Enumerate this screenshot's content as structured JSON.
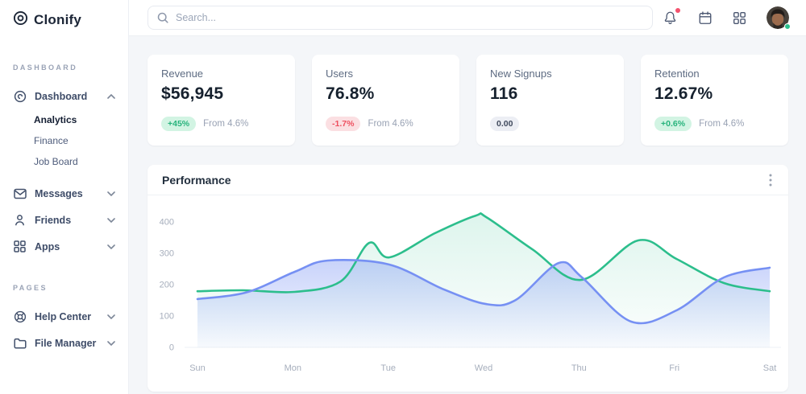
{
  "brand": {
    "name": "Clonify"
  },
  "topbar": {
    "search_placeholder": "Search...",
    "icons": [
      "bell-icon",
      "calendar-icon",
      "apps-grid-icon",
      "avatar"
    ],
    "has_notification": true,
    "status_color": "#2dbf8d",
    "notification_color": "#f4536e"
  },
  "sidebar": {
    "sections": [
      {
        "label": "DASHBOARD",
        "items": [
          {
            "label": "Dashboard",
            "icon": "dashboard-icon",
            "expanded": true,
            "children": [
              "Analytics",
              "Finance",
              "Job Board"
            ],
            "active_child": "Analytics"
          },
          {
            "label": "Messages",
            "icon": "mail-icon",
            "expanded": false
          },
          {
            "label": "Friends",
            "icon": "user-icon",
            "expanded": false
          },
          {
            "label": "Apps",
            "icon": "apps-icon",
            "expanded": false
          }
        ]
      },
      {
        "label": "PAGES",
        "items": [
          {
            "label": "Help Center",
            "icon": "help-icon",
            "expanded": false
          },
          {
            "label": "File Manager",
            "icon": "folder-icon",
            "expanded": false
          }
        ]
      }
    ]
  },
  "stats": [
    {
      "title": "Revenue",
      "value": "$56,945",
      "badge": "+45%",
      "badge_type": "positive",
      "note": "From 4.6%"
    },
    {
      "title": "Users",
      "value": "76.8%",
      "badge": "-1.7%",
      "badge_type": "negative",
      "note": "From 4.6%"
    },
    {
      "title": "New Signups",
      "value": "116",
      "badge": "0.00",
      "badge_type": "neutral",
      "note": ""
    },
    {
      "title": "Retention",
      "value": "12.67%",
      "badge": "+0.6%",
      "badge_type": "positive",
      "note": "From 4.6%"
    }
  ],
  "panel": {
    "title": "Performance"
  },
  "chart_data": {
    "type": "area",
    "title": "Performance",
    "categories": [
      "Sun",
      "Mon",
      "Tue",
      "Wed",
      "Thu",
      "Fri",
      "Sat"
    ],
    "yticks": [
      0,
      100,
      200,
      300,
      400
    ],
    "ylim": [
      0,
      450
    ],
    "grid": false,
    "legend": "none",
    "day_values": {
      "green": [
        180,
        177,
        290,
        415,
        225,
        285,
        180
      ],
      "blue": [
        155,
        241,
        265,
        140,
        225,
        118,
        254
      ]
    },
    "series": [
      {
        "name": "green",
        "color": "#2cbe8c",
        "fill_from": "rgba(44,190,140,0.16)",
        "fill_to": "rgba(44,190,140,0.01)",
        "points": [
          [
            0,
            179
          ],
          [
            0.08,
            182
          ],
          [
            0.17,
            177
          ],
          [
            0.25,
            210
          ],
          [
            0.3,
            333
          ],
          [
            0.335,
            287
          ],
          [
            0.415,
            364
          ],
          [
            0.486,
            420
          ],
          [
            0.505,
            415
          ],
          [
            0.585,
            313
          ],
          [
            0.67,
            215
          ],
          [
            0.77,
            341
          ],
          [
            0.837,
            282
          ],
          [
            0.92,
            205
          ],
          [
            1,
            179
          ]
        ]
      },
      {
        "name": "blue",
        "color": "#7690f3",
        "fill_from": "rgba(118,144,243,0.40)",
        "fill_to": "rgba(118,144,243,0.04)",
        "points": [
          [
            0,
            154
          ],
          [
            0.085,
            175
          ],
          [
            0.17,
            241
          ],
          [
            0.228,
            277
          ],
          [
            0.335,
            264
          ],
          [
            0.43,
            185
          ],
          [
            0.505,
            138
          ],
          [
            0.556,
            151
          ],
          [
            0.631,
            269
          ],
          [
            0.672,
            223
          ],
          [
            0.758,
            82
          ],
          [
            0.837,
            118
          ],
          [
            0.92,
            223
          ],
          [
            1,
            254
          ]
        ]
      }
    ]
  }
}
